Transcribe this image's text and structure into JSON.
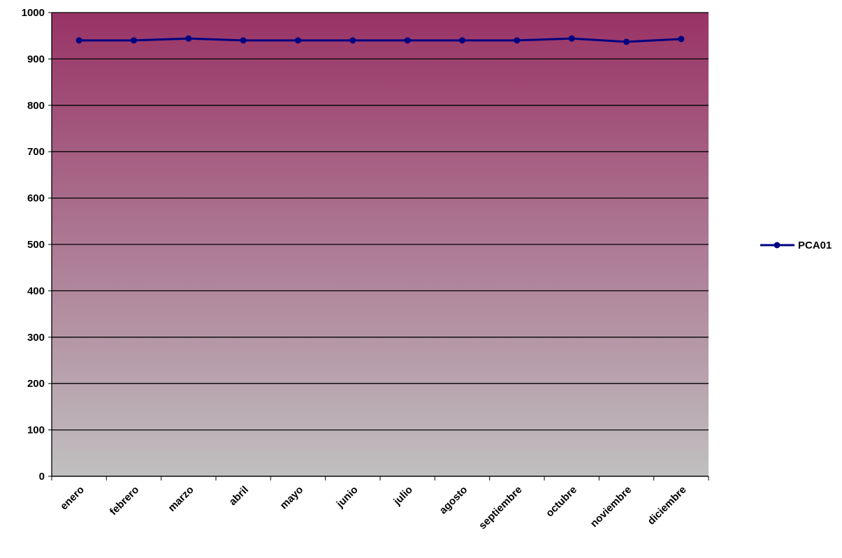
{
  "chart_data": {
    "type": "line",
    "title": "",
    "xlabel": "",
    "ylabel": "",
    "categories": [
      "enero",
      "febrero",
      "marzo",
      "abril",
      "mayo",
      "junio",
      "julio",
      "agosto",
      "septiembre",
      "octubre",
      "noviembre",
      "diciembre"
    ],
    "series": [
      {
        "name": "PCA01",
        "color": "#000080",
        "values": [
          940,
          940,
          944,
          940,
          940,
          940,
          940,
          940,
          940,
          944,
          937,
          943
        ]
      }
    ],
    "ylim": [
      0,
      1000
    ],
    "yticks": [
      0,
      100,
      200,
      300,
      400,
      500,
      600,
      700,
      800,
      900,
      1000
    ],
    "grid": true,
    "legend_position": "right",
    "background_gradient": {
      "top": "#993366",
      "bottom": "#c0c0c0"
    }
  }
}
